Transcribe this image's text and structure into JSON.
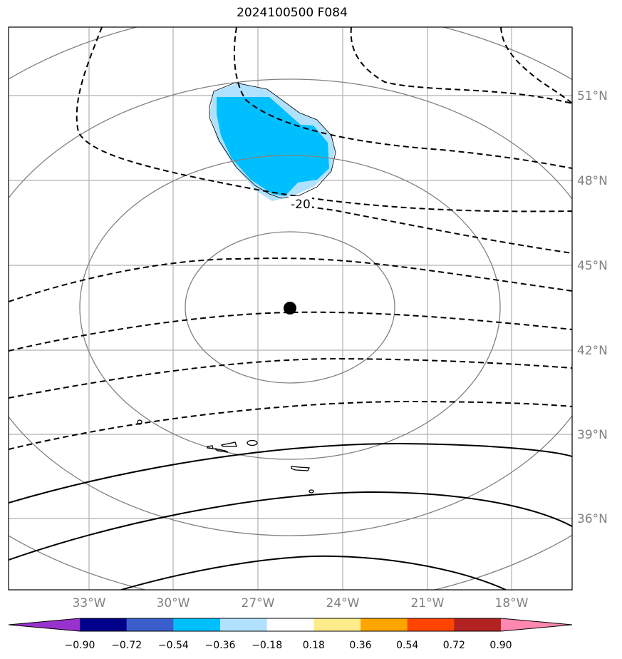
{
  "chart_data": {
    "type": "map",
    "title": "2024100500 F084",
    "lon_ticks": [
      "33°W",
      "30°W",
      "27°W",
      "24°W",
      "21°W",
      "18°W"
    ],
    "lat_ticks": [
      "51°N",
      "48°N",
      "45°N",
      "42°N",
      "39°N",
      "36°N"
    ],
    "contour_label": "-20",
    "center_marker": {
      "lon": -25.9,
      "lat": 43.5
    },
    "colorbar": {
      "ticks": [
        "−0.90",
        "−0.72",
        "−0.54",
        "−0.36",
        "−0.18",
        "0.18",
        "0.36",
        "0.54",
        "0.72",
        "0.90"
      ],
      "colors": [
        "#9932cc",
        "#00008b",
        "#3a5fcd",
        "#00bfff",
        "#b0e2ff",
        "#ffffff",
        "#ffec8b",
        "#ffa500",
        "#ff4500",
        "#b22222",
        "#ff88b0"
      ]
    },
    "shaded_region_value": "-0.54 to -0.36"
  }
}
